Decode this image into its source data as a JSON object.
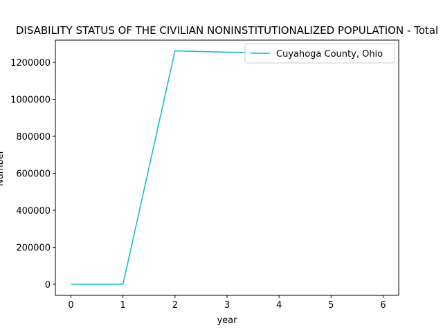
{
  "chart_data": {
    "type": "line",
    "title": "DISABILITY STATUS OF THE CIVILIAN NONINSTITUTIONALIZED POPULATION - Total",
    "xlabel": "year",
    "ylabel": "Number",
    "x": [
      0,
      1,
      2,
      3,
      4,
      5,
      6
    ],
    "xlim": [
      -0.3,
      6.3
    ],
    "ylim": [
      -60000,
      1320000
    ],
    "xticks": [
      0,
      1,
      2,
      3,
      4,
      5,
      6
    ],
    "yticks": [
      0,
      200000,
      400000,
      600000,
      800000,
      1000000,
      1200000
    ],
    "grid": false,
    "legend_position": "top-right",
    "series": [
      {
        "name": "Cuyahoga County, Ohio",
        "color": "#17becf",
        "x": [
          0,
          1,
          2,
          3,
          4
        ],
        "values": [
          0,
          0,
          1262000,
          1255000,
          1250000
        ]
      }
    ]
  }
}
